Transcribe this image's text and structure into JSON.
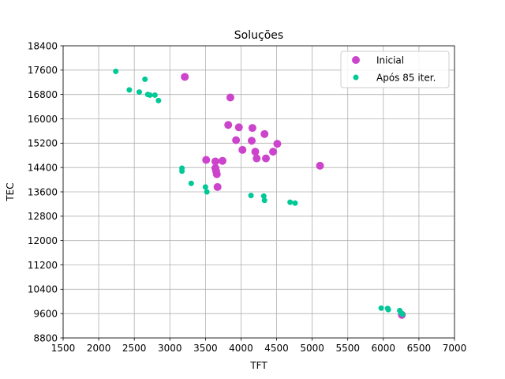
{
  "chart_data": {
    "type": "scatter",
    "title": "Soluções",
    "xlabel": "TFT",
    "ylabel": "TEC",
    "xlim": [
      1500,
      7000
    ],
    "ylim": [
      8800,
      18400
    ],
    "xticks": [
      "1500",
      "2000",
      "2500",
      "3000",
      "3500",
      "4000",
      "4500",
      "5000",
      "5500",
      "6000",
      "6500",
      "7000"
    ],
    "yticks": [
      "8800",
      "9600",
      "10400",
      "11200",
      "12000",
      "12800",
      "13600",
      "14400",
      "15200",
      "16000",
      "16800",
      "17600",
      "18400"
    ],
    "grid": true,
    "legend_position": "top-right",
    "series": [
      {
        "name": "Inicial",
        "color": "#cc44cc",
        "points": [
          [
            3210,
            17380
          ],
          [
            3850,
            16700
          ],
          [
            3820,
            15800
          ],
          [
            3970,
            15720
          ],
          [
            4160,
            15700
          ],
          [
            4330,
            15500
          ],
          [
            3930,
            15300
          ],
          [
            4150,
            15280
          ],
          [
            4510,
            15180
          ],
          [
            4020,
            14980
          ],
          [
            4200,
            14920
          ],
          [
            4450,
            14920
          ],
          [
            4220,
            14700
          ],
          [
            4350,
            14700
          ],
          [
            3510,
            14650
          ],
          [
            3640,
            14600
          ],
          [
            3740,
            14620
          ],
          [
            5110,
            14460
          ],
          [
            3640,
            14380
          ],
          [
            3650,
            14280
          ],
          [
            3660,
            14180
          ],
          [
            3670,
            13760
          ],
          [
            6260,
            9560
          ]
        ]
      },
      {
        "name": "Após 85 iter.",
        "color": "#00c896",
        "points": [
          [
            2240,
            17560
          ],
          [
            2650,
            17300
          ],
          [
            2430,
            16950
          ],
          [
            2570,
            16880
          ],
          [
            2690,
            16800
          ],
          [
            2720,
            16780
          ],
          [
            2790,
            16780
          ],
          [
            2840,
            16600
          ],
          [
            3170,
            14380
          ],
          [
            3170,
            14280
          ],
          [
            3300,
            13880
          ],
          [
            3500,
            13760
          ],
          [
            3520,
            13600
          ],
          [
            4140,
            13480
          ],
          [
            4320,
            13460
          ],
          [
            4330,
            13320
          ],
          [
            4690,
            13260
          ],
          [
            4760,
            13230
          ],
          [
            5970,
            9780
          ],
          [
            6060,
            9770
          ],
          [
            6070,
            9730
          ],
          [
            6230,
            9700
          ],
          [
            6250,
            9620
          ],
          [
            6270,
            9580
          ]
        ]
      }
    ]
  }
}
